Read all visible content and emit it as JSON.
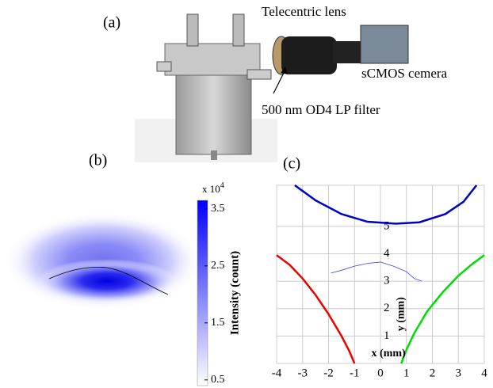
{
  "figure": {
    "panel_a": "(a)",
    "panel_b": "(b)",
    "panel_c": "(c)",
    "lens_label": "Telecentric lens",
    "camera_label": "sCMOS cemera",
    "filter_label": "500 nm OD4 LP filter"
  },
  "chart_data": [
    {
      "type": "heatmap",
      "colorbar_label": "Intensity (count)",
      "scale_text": "x 10",
      "scale_exponent": "4",
      "color": "#0000ff",
      "clim": [
        0.4,
        3.65
      ],
      "ticks": [
        0.5,
        1.5,
        2.5,
        3.5
      ]
    },
    {
      "type": "line",
      "x_label": "x (mm)",
      "y_label": "y (mm)",
      "grid": true,
      "xlim": [
        -4,
        4
      ],
      "ylim": [
        0,
        6.5
      ],
      "xticks": [
        -4,
        -3,
        -2,
        -1,
        0,
        1,
        2,
        3,
        4
      ],
      "yticks": [
        1,
        2,
        3,
        4,
        5
      ],
      "series": [
        {
          "color": "#0000cc",
          "width": 2.5,
          "x": [
            -3.3,
            -2.5,
            -1.5,
            -0.5,
            0.6,
            1.5,
            2.5,
            3.2,
            3.7
          ],
          "values": [
            6.5,
            5.95,
            5.45,
            5.17,
            5.1,
            5.15,
            5.45,
            5.9,
            6.5
          ]
        },
        {
          "color": "#ee0000",
          "width": 2.5,
          "x": [
            -4,
            -3.5,
            -3,
            -2.5,
            -2,
            -1.5,
            -1.2,
            -1
          ],
          "values": [
            3.95,
            3.6,
            3.1,
            2.5,
            1.8,
            1.0,
            0.45,
            0
          ]
        },
        {
          "color": "#00dd00",
          "width": 2.5,
          "x": [
            0.8,
            1.0,
            1.3,
            1.8,
            2.4,
            3.0,
            3.5,
            4.0
          ],
          "values": [
            0,
            0.5,
            1.1,
            1.9,
            2.6,
            3.2,
            3.6,
            3.95
          ]
        },
        {
          "color": "#3344dd",
          "width": 0.8,
          "x": [
            -1.9,
            -1.5,
            -1,
            -0.5,
            0,
            0.5,
            1,
            1.3,
            1.6
          ],
          "values": [
            3.3,
            3.4,
            3.55,
            3.65,
            3.7,
            3.55,
            3.35,
            3.1,
            3.0
          ]
        }
      ]
    }
  ]
}
